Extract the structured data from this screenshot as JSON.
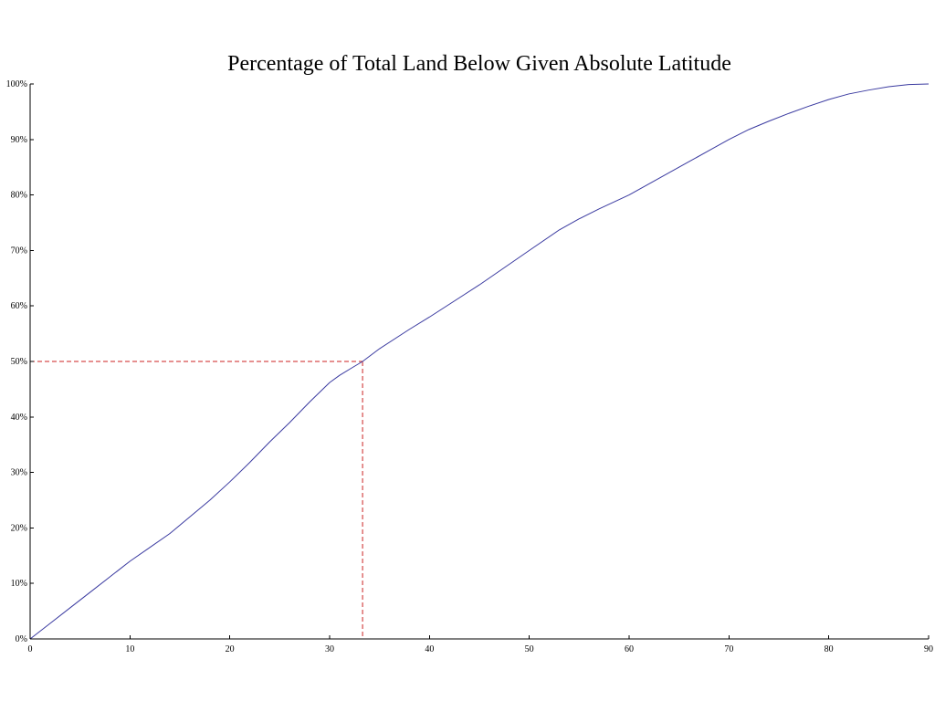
{
  "chart_data": {
    "type": "line",
    "title": "Percentage of Total Land Below Given Absolute Latitude",
    "xlabel": "",
    "ylabel": "",
    "xlim": [
      0,
      90
    ],
    "ylim": [
      0,
      100
    ],
    "x_ticks": [
      0,
      10,
      20,
      30,
      40,
      50,
      60,
      70,
      80,
      90
    ],
    "y_ticks": [
      0,
      10,
      20,
      30,
      40,
      50,
      60,
      70,
      80,
      90,
      100
    ],
    "y_tick_labels": [
      "0%",
      "10%",
      "20%",
      "30%",
      "40%",
      "50%",
      "60%",
      "70%",
      "80%",
      "90%",
      "100%"
    ],
    "grid": false,
    "series": [
      {
        "color": "#3a3aa0",
        "x": [
          0,
          2,
          4,
          6,
          8,
          10,
          12,
          14,
          16,
          18,
          20,
          22,
          24,
          26,
          28,
          30,
          31,
          32,
          33.3,
          35,
          38,
          40,
          45,
          50,
          53,
          55,
          57,
          60,
          63,
          66,
          68,
          70,
          72,
          74,
          76,
          78,
          80,
          82,
          84,
          86,
          88,
          90
        ],
        "y": [
          0,
          2.8,
          5.6,
          8.4,
          11.2,
          14.0,
          16.5,
          19.0,
          22.0,
          25.0,
          28.3,
          31.8,
          35.5,
          39.0,
          42.7,
          46.2,
          47.5,
          48.6,
          50.0,
          52.3,
          55.8,
          58.0,
          63.8,
          70.0,
          73.7,
          75.7,
          77.5,
          80.0,
          83.0,
          86.0,
          88.0,
          90.0,
          91.8,
          93.3,
          94.7,
          96.0,
          97.2,
          98.2,
          98.9,
          99.5,
          99.9,
          100
        ]
      }
    ],
    "reference_lines": [
      {
        "color": "#cc2222",
        "style": "dashed",
        "x": 33.3,
        "y": 50
      }
    ]
  }
}
